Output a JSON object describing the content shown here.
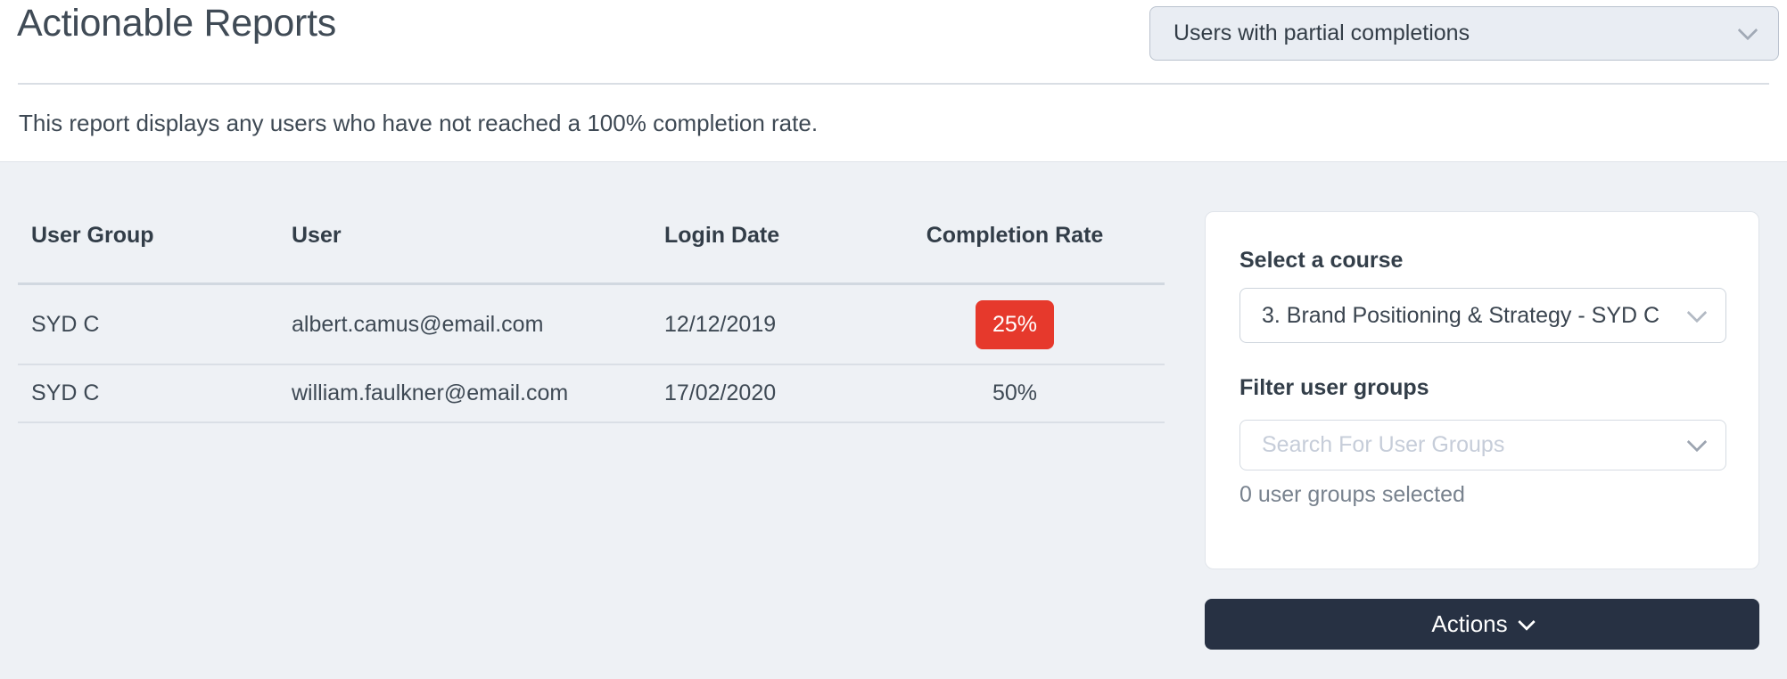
{
  "header": {
    "title": "Actionable Reports",
    "report_select": {
      "value": "Users with partial completions"
    },
    "description": "This report displays any users who have not reached a 100% completion rate."
  },
  "table": {
    "columns": [
      "User Group",
      "User",
      "Login Date",
      "Completion Rate"
    ],
    "rows": [
      {
        "user_group": "SYD C",
        "user": "albert.camus@email.com",
        "login_date": "12/12/2019",
        "completion_rate": "25%",
        "badge": true
      },
      {
        "user_group": "SYD C",
        "user": "william.faulkner@email.com",
        "login_date": "17/02/2020",
        "completion_rate": "50%",
        "badge": false
      }
    ]
  },
  "side_panel": {
    "course_label": "Select a course",
    "course_select": {
      "value": "3. Brand Positioning & Strategy - SYD C"
    },
    "filter_label": "Filter user groups",
    "filter_input": {
      "placeholder": "Search For User Groups"
    },
    "selected_count": "0 user groups selected",
    "actions_button": "Actions"
  },
  "colors": {
    "badge_red": "#e6392c",
    "actions_navy": "#273143",
    "panel_bg": "#eef1f5",
    "select_bg": "#e9edf3"
  }
}
